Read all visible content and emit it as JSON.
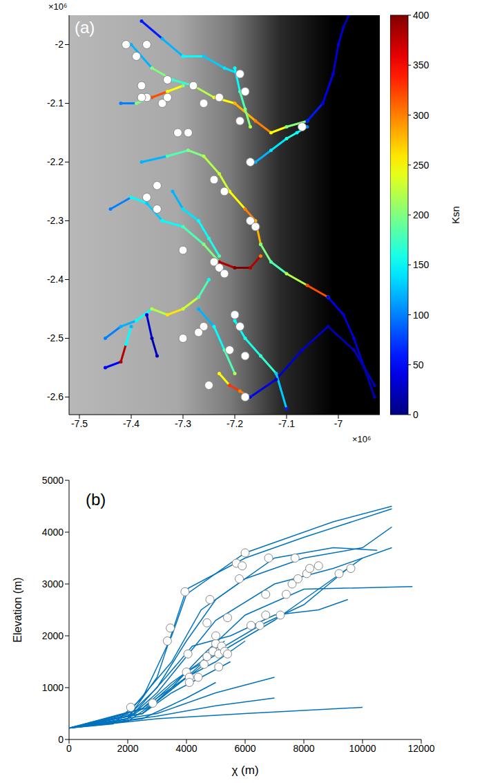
{
  "chart_data": [
    {
      "type": "map",
      "title": "(a)",
      "xlim": [
        -7.52,
        -6.92
      ],
      "xticks": [
        -7.5,
        -7.4,
        -7.3,
        -7.2,
        -7.1,
        -7
      ],
      "ylim": [
        -2.63,
        -1.95
      ],
      "yticks": [
        -2.6,
        -2.5,
        -2.4,
        -2.3,
        -2.2,
        -2.1,
        -2
      ],
      "annotations": [
        {
          "text": "×10⁶",
          "axis": "y"
        },
        {
          "text": "×10⁶",
          "axis": "x"
        }
      ],
      "colorbar": {
        "label": "Ksn",
        "lim": [
          0,
          400
        ],
        "ticks": [
          0,
          50,
          100,
          150,
          200,
          250,
          300,
          350,
          400
        ]
      },
      "series": [
        {
          "x": [
            -7.4,
            -7.36,
            -7.32,
            -7.28,
            -7.24,
            -7.2,
            -7.16,
            -7.13,
            -7.1,
            -7.06
          ],
          "y": [
            -2.0,
            -2.04,
            -2.06,
            -2.07,
            -2.09,
            -2.1,
            -2.13,
            -2.15,
            -2.14,
            -2.13
          ],
          "ksn": [
            120,
            200,
            170,
            220,
            250,
            280,
            300,
            250,
            200,
            120
          ]
        },
        {
          "x": [
            -7.06,
            -7.03,
            -7.01,
            -7.0,
            -6.99,
            -6.98
          ],
          "y": [
            -2.13,
            -2.1,
            -2.05,
            -2.0,
            -1.97,
            -1.95
          ],
          "ksn": [
            60,
            40,
            30,
            30,
            20,
            20
          ]
        },
        {
          "x": [
            -7.38,
            -7.34,
            -7.3,
            -7.26,
            -7.22,
            -7.19
          ],
          "y": [
            -1.96,
            -1.99,
            -2.02,
            -2.02,
            -2.04,
            -2.05
          ],
          "ksn": [
            60,
            120,
            150,
            130,
            140,
            150
          ]
        },
        {
          "x": [
            -7.42,
            -7.39,
            -7.36,
            -7.33,
            -7.3
          ],
          "y": [
            -2.1,
            -2.1,
            -2.09,
            -2.08,
            -2.07
          ],
          "ksn": [
            100,
            200,
            320,
            250,
            200
          ]
        },
        {
          "x": [
            -7.2,
            -7.19,
            -7.18,
            -7.17
          ],
          "y": [
            -2.04,
            -2.08,
            -2.11,
            -2.14
          ],
          "ksn": [
            150,
            180,
            200,
            220
          ]
        },
        {
          "x": [
            -7.16,
            -7.13,
            -7.1,
            -7.08,
            -7.06
          ],
          "y": [
            -2.2,
            -2.18,
            -2.16,
            -2.15,
            -2.14
          ],
          "ksn": [
            120,
            140,
            160,
            150,
            100
          ]
        },
        {
          "x": [
            -7.38,
            -7.33,
            -7.29,
            -7.26,
            -7.23,
            -7.21,
            -7.18,
            -7.16,
            -7.15
          ],
          "y": [
            -2.2,
            -2.19,
            -2.18,
            -2.19,
            -2.22,
            -2.25,
            -2.28,
            -2.3,
            -2.34
          ],
          "ksn": [
            120,
            180,
            200,
            220,
            230,
            250,
            300,
            280,
            260
          ]
        },
        {
          "x": [
            -7.15,
            -7.13,
            -7.1,
            -7.06,
            -7.02
          ],
          "y": [
            -2.34,
            -2.37,
            -2.39,
            -2.41,
            -2.43
          ],
          "ksn": [
            200,
            180,
            220,
            320,
            150
          ]
        },
        {
          "x": [
            -7.02,
            -6.99,
            -6.97,
            -6.95,
            -6.93
          ],
          "y": [
            -2.43,
            -2.46,
            -2.5,
            -2.55,
            -2.6
          ],
          "ksn": [
            40,
            30,
            30,
            20,
            20
          ]
        },
        {
          "x": [
            -7.34,
            -7.3,
            -7.26,
            -7.23,
            -7.2,
            -7.17,
            -7.15
          ],
          "y": [
            -2.3,
            -2.31,
            -2.34,
            -2.37,
            -2.38,
            -2.38,
            -2.36
          ],
          "ksn": [
            150,
            180,
            200,
            380,
            400,
            380,
            300
          ]
        },
        {
          "x": [
            -7.44,
            -7.4,
            -7.37,
            -7.34
          ],
          "y": [
            -2.28,
            -2.26,
            -2.27,
            -2.3
          ],
          "ksn": [
            100,
            150,
            130,
            150
          ]
        },
        {
          "x": [
            -7.32,
            -7.3,
            -7.27,
            -7.25,
            -7.23
          ],
          "y": [
            -2.25,
            -2.28,
            -2.3,
            -2.33,
            -2.36
          ],
          "ksn": [
            120,
            140,
            150,
            160,
            180
          ]
        },
        {
          "x": [
            -7.45,
            -7.42,
            -7.39,
            -7.36,
            -7.33,
            -7.3,
            -7.27,
            -7.25
          ],
          "y": [
            -2.5,
            -2.48,
            -2.47,
            -2.45,
            -2.46,
            -2.45,
            -2.43,
            -2.4
          ],
          "ksn": [
            100,
            120,
            150,
            220,
            260,
            230,
            180,
            150
          ]
        },
        {
          "x": [
            -7.45,
            -7.42,
            -7.41,
            -7.4
          ],
          "y": [
            -2.55,
            -2.54,
            -2.51,
            -2.48
          ],
          "ksn": [
            50,
            380,
            150,
            120
          ]
        },
        {
          "x": [
            -7.37,
            -7.36,
            -7.35
          ],
          "y": [
            -2.46,
            -2.5,
            -2.53
          ],
          "ksn": [
            30,
            20,
            30
          ]
        },
        {
          "x": [
            -7.23,
            -7.21,
            -7.19,
            -7.17
          ],
          "y": [
            -2.56,
            -2.58,
            -2.59,
            -2.6
          ],
          "ksn": [
            250,
            330,
            300,
            150
          ]
        },
        {
          "x": [
            -7.17,
            -7.12,
            -7.07,
            -7.02,
            -6.97,
            -6.93
          ],
          "y": [
            -2.6,
            -2.57,
            -2.52,
            -2.48,
            -2.52,
            -2.58
          ],
          "ksn": [
            40,
            30,
            30,
            20,
            20,
            20
          ]
        },
        {
          "x": [
            -7.2,
            -7.18,
            -7.15,
            -7.12,
            -7.1
          ],
          "y": [
            -2.47,
            -2.5,
            -2.53,
            -2.56,
            -2.62
          ],
          "ksn": [
            150,
            160,
            170,
            130,
            60
          ]
        },
        {
          "x": [
            -7.27,
            -7.24,
            -7.22,
            -7.2
          ],
          "y": [
            -2.45,
            -2.48,
            -2.52,
            -2.56
          ],
          "ksn": [
            120,
            150,
            180,
            220
          ]
        }
      ],
      "points": {
        "x": [
          -7.41,
          -7.37,
          -7.39,
          -7.38,
          -7.37,
          -7.38,
          -7.33,
          -7.34,
          -7.33,
          -7.28,
          -7.26,
          -7.23,
          -7.19,
          -7.18,
          -7.19,
          -7.07,
          -7.31,
          -7.29,
          -7.17,
          -7.24,
          -7.22,
          -7.35,
          -7.37,
          -7.35,
          -7.17,
          -7.16,
          -7.3,
          -7.24,
          -7.23,
          -7.22,
          -7.2,
          -7.19,
          -7.21,
          -7.18,
          -7.26,
          -7.27,
          -7.3,
          -7.25,
          -7.18
        ],
        "y": [
          -2.0,
          -2.0,
          -2.02,
          -2.07,
          -2.09,
          -2.09,
          -2.06,
          -2.1,
          -2.09,
          -2.07,
          -2.1,
          -2.09,
          -2.05,
          -2.08,
          -2.13,
          -2.14,
          -2.15,
          -2.15,
          -2.2,
          -2.23,
          -2.25,
          -2.24,
          -2.26,
          -2.28,
          -2.3,
          -2.31,
          -2.35,
          -2.37,
          -2.38,
          -2.39,
          -2.46,
          -2.48,
          -2.52,
          -2.53,
          -2.48,
          -2.49,
          -2.5,
          -2.58,
          -2.6
        ]
      }
    },
    {
      "type": "line",
      "title": "(b)",
      "x_label": "χ (m)",
      "y_label": "Elevation (m)",
      "xlim": [
        0,
        12000
      ],
      "xticks": [
        0,
        2000,
        4000,
        6000,
        8000,
        10000,
        12000
      ],
      "ylim": [
        0,
        5000
      ],
      "yticks": [
        0,
        1000,
        2000,
        3000,
        4000,
        5000
      ],
      "color": "#0072bd",
      "series": [
        {
          "x": [
            0,
            1500,
            2500,
            3500,
            4000,
            6000,
            9000,
            11000
          ],
          "y": [
            220,
            300,
            800,
            2000,
            2800,
            3600,
            4200,
            4500
          ]
        },
        {
          "x": [
            0,
            2000,
            3000,
            4000,
            6000,
            8000,
            11000
          ],
          "y": [
            220,
            400,
            1200,
            2900,
            3500,
            3900,
            4450
          ]
        },
        {
          "x": [
            0,
            2000,
            3500,
            4500,
            6000,
            8000,
            10000,
            11000
          ],
          "y": [
            220,
            500,
            1500,
            2500,
            3100,
            3500,
            3700,
            4100
          ]
        },
        {
          "x": [
            0,
            2000,
            3000,
            4000,
            5000,
            7000,
            9000,
            11000
          ],
          "y": [
            220,
            400,
            900,
            1600,
            2300,
            3000,
            3300,
            3700
          ]
        },
        {
          "x": [
            0,
            2500,
            3500,
            4500,
            6000,
            8000,
            11700
          ],
          "y": [
            220,
            500,
            1000,
            1600,
            2400,
            2900,
            2950
          ]
        },
        {
          "x": [
            0,
            2500,
            4000,
            5000,
            6500,
            8000,
            9500
          ],
          "y": [
            220,
            500,
            1200,
            1700,
            2200,
            2600,
            3300
          ]
        },
        {
          "x": [
            0,
            2500,
            3500,
            4500,
            5300
          ],
          "y": [
            220,
            600,
            1100,
            1500,
            1900
          ]
        },
        {
          "x": [
            0,
            2000,
            3000,
            4000,
            5000,
            6000
          ],
          "y": [
            220,
            400,
            800,
            1200,
            1500,
            1900
          ]
        },
        {
          "x": [
            0,
            2500,
            3500,
            4500,
            5500
          ],
          "y": [
            220,
            500,
            900,
            1200,
            1500
          ]
        },
        {
          "x": [
            0,
            3000,
            5000,
            7000
          ],
          "y": [
            220,
            500,
            900,
            1200
          ]
        },
        {
          "x": [
            0,
            3000,
            5000,
            7000
          ],
          "y": [
            220,
            450,
            650,
            800
          ]
        },
        {
          "x": [
            0,
            3000,
            6000,
            10000
          ],
          "y": [
            220,
            400,
            500,
            620
          ]
        },
        {
          "x": [
            0,
            2500,
            4000,
            5000
          ],
          "y": [
            220,
            400,
            800,
            1100
          ]
        },
        {
          "x": [
            0,
            2000,
            3000,
            4000,
            5000,
            7000,
            9000,
            10500
          ],
          "y": [
            220,
            450,
            1000,
            1900,
            2700,
            3500,
            3700,
            3650
          ]
        },
        {
          "x": [
            0,
            2200,
            3300,
            4200,
            5500,
            7000,
            8500,
            9500
          ],
          "y": [
            220,
            500,
            1200,
            1800,
            2000,
            2400,
            2500,
            2700
          ]
        },
        {
          "x": [
            0,
            2000,
            2900,
            3800,
            4500
          ],
          "y": [
            220,
            350,
            700,
            1100,
            1400
          ]
        },
        {
          "x": [
            0,
            2600,
            4000,
            5500,
            7000,
            8000,
            10000
          ],
          "y": [
            220,
            600,
            1300,
            1800,
            2300,
            2700,
            3500
          ]
        }
      ],
      "points": {
        "x": [
          2100,
          2850,
          3350,
          3450,
          3950,
          4000,
          4100,
          4100,
          4050,
          4400,
          4600,
          4700,
          4700,
          4800,
          4900,
          5000,
          5000,
          5100,
          5100,
          5200,
          5300,
          5400,
          5400,
          5700,
          5800,
          5900,
          6000,
          6200,
          6500,
          6700,
          6700,
          6800,
          7200,
          7400,
          7600,
          7700,
          7800,
          8100,
          8200,
          8500,
          9200,
          9600
        ],
        "y": [
          620,
          700,
          1900,
          2150,
          2850,
          1300,
          1200,
          1100,
          1650,
          1200,
          1450,
          1600,
          2250,
          2700,
          1700,
          1850,
          2000,
          1400,
          1650,
          1800,
          1700,
          2350,
          1650,
          3400,
          3100,
          3350,
          3600,
          2200,
          2200,
          2800,
          2400,
          3500,
          2400,
          2800,
          3000,
          3500,
          3100,
          3200,
          3300,
          3350,
          3200,
          3300
        ]
      }
    }
  ]
}
